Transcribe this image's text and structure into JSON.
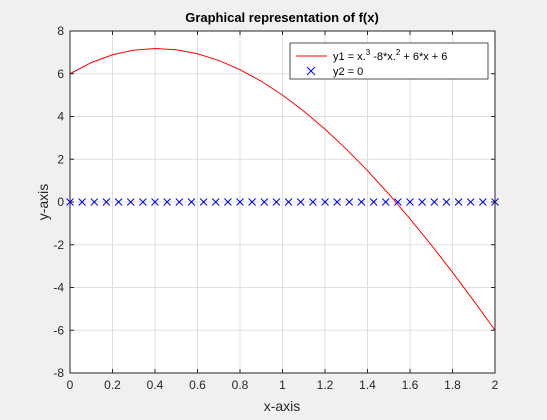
{
  "chart_data": {
    "type": "line",
    "title": "Graphical representation of f(x)",
    "xlabel": "x-axis",
    "ylabel": "y-axis",
    "xlim": [
      0,
      2
    ],
    "ylim": [
      -8,
      8
    ],
    "xticks": [
      0,
      0.2,
      0.4,
      0.6,
      0.8,
      1,
      1.2,
      1.4,
      1.6,
      1.8,
      2
    ],
    "xtick_labels": [
      "0",
      "0.2",
      "0.4",
      "0.6",
      "0.8",
      "1",
      "1.2",
      "1.4",
      "1.6",
      "1.8",
      "2"
    ],
    "yticks": [
      -8,
      -6,
      -4,
      -2,
      0,
      2,
      4,
      6,
      8
    ],
    "ytick_labels": [
      "-8",
      "-6",
      "-4",
      "-2",
      "0",
      "2",
      "4",
      "6",
      "8"
    ],
    "grid": true,
    "legend_position": "top-right",
    "series": [
      {
        "name": "y1 = x.^3 -8*x.^2 + 6*x + 6",
        "legend": {
          "main": "y1 =  x.",
          "sup1": "3",
          "mid": " -8*x.",
          "sup2": "2",
          "tail": " + 6*x + 6"
        },
        "style": "line",
        "color": "#ff0000",
        "x": [
          0,
          0.1,
          0.2,
          0.3,
          0.4,
          0.5,
          0.6,
          0.7,
          0.8,
          0.9,
          1.0,
          1.1,
          1.2,
          1.3,
          1.4,
          1.5,
          1.6,
          1.7,
          1.8,
          1.9,
          2.0
        ],
        "y": [
          6,
          6.521,
          6.888,
          7.107,
          7.184,
          7.125,
          6.936,
          6.623,
          6.192,
          5.649,
          5,
          4.251,
          3.408,
          2.477,
          1.464,
          0.375,
          -0.784,
          -2.007,
          -3.288,
          -4.621,
          -6
        ]
      },
      {
        "name": "y2 = 0",
        "legend": {
          "main": "y2 = 0"
        },
        "style": "marker-x",
        "color": "#0000ff",
        "x": [
          0,
          0.0571,
          0.1143,
          0.1714,
          0.2286,
          0.2857,
          0.3429,
          0.4,
          0.4571,
          0.5143,
          0.5714,
          0.6286,
          0.6857,
          0.7429,
          0.8,
          0.8571,
          0.9143,
          0.9714,
          1.0286,
          1.0857,
          1.1429,
          1.2,
          1.2571,
          1.3143,
          1.3714,
          1.4286,
          1.4857,
          1.5429,
          1.6,
          1.6571,
          1.7143,
          1.7714,
          1.8286,
          1.8857,
          1.9429,
          2.0
        ],
        "y": [
          0,
          0,
          0,
          0,
          0,
          0,
          0,
          0,
          0,
          0,
          0,
          0,
          0,
          0,
          0,
          0,
          0,
          0,
          0,
          0,
          0,
          0,
          0,
          0,
          0,
          0,
          0,
          0,
          0,
          0,
          0,
          0,
          0,
          0,
          0,
          0
        ]
      }
    ]
  }
}
